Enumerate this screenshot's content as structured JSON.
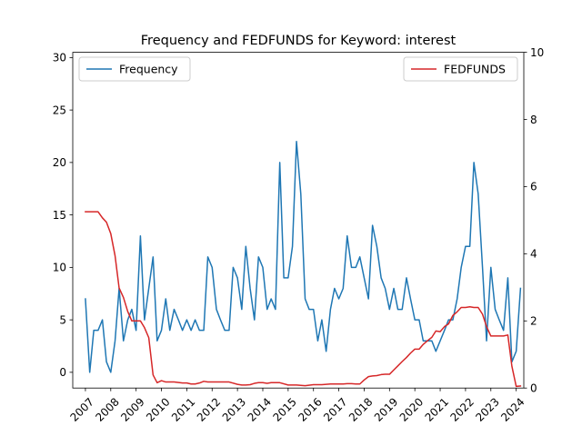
{
  "chart_data": {
    "type": "line",
    "title": "Frequency and FEDFUNDS for Keyword: interest",
    "xlabel": "",
    "x_axis": {
      "min": 2006.5,
      "max": 2024.3,
      "ticks": [
        2007,
        2008,
        2009,
        2010,
        2011,
        2012,
        2013,
        2014,
        2015,
        2016,
        2017,
        2018,
        2019,
        2020,
        2021,
        2022,
        2023,
        2024
      ],
      "tick_labels": [
        "2007",
        "2008",
        "2009",
        "2010",
        "2011",
        "2012",
        "2013",
        "2014",
        "2015",
        "2016",
        "2017",
        "2018",
        "2019",
        "2020",
        "2021",
        "2022",
        "2023",
        "2024"
      ]
    },
    "y_left": {
      "label": "",
      "min": -1.5,
      "max": 30.5,
      "ticks": [
        0,
        5,
        10,
        15,
        20,
        25,
        30
      ],
      "tick_labels": [
        "0",
        "5",
        "10",
        "15",
        "20",
        "25",
        "30"
      ]
    },
    "y_right": {
      "label": "",
      "min": 0,
      "max": 10,
      "ticks": [
        0,
        2,
        4,
        6,
        8,
        10
      ],
      "tick_labels": [
        "0",
        "2",
        "4",
        "6",
        "8",
        "10"
      ]
    },
    "grid": false,
    "series": [
      {
        "name": "Frequency",
        "axis": "left",
        "color": "#1f77b4",
        "points": [
          [
            2007.0,
            7
          ],
          [
            2007.17,
            0
          ],
          [
            2007.33,
            4
          ],
          [
            2007.5,
            4
          ],
          [
            2007.67,
            5
          ],
          [
            2007.83,
            1
          ],
          [
            2008.0,
            0
          ],
          [
            2008.17,
            3
          ],
          [
            2008.33,
            8
          ],
          [
            2008.5,
            3
          ],
          [
            2008.67,
            5
          ],
          [
            2008.83,
            6
          ],
          [
            2009.0,
            4
          ],
          [
            2009.17,
            13
          ],
          [
            2009.33,
            5
          ],
          [
            2009.5,
            8
          ],
          [
            2009.67,
            11
          ],
          [
            2009.83,
            3
          ],
          [
            2010.0,
            4
          ],
          [
            2010.17,
            7
          ],
          [
            2010.33,
            4
          ],
          [
            2010.5,
            6
          ],
          [
            2010.67,
            5
          ],
          [
            2010.83,
            4
          ],
          [
            2011.0,
            5
          ],
          [
            2011.17,
            4
          ],
          [
            2011.33,
            5
          ],
          [
            2011.5,
            4
          ],
          [
            2011.67,
            4
          ],
          [
            2011.83,
            11
          ],
          [
            2012.0,
            10
          ],
          [
            2012.17,
            6
          ],
          [
            2012.33,
            5
          ],
          [
            2012.5,
            4
          ],
          [
            2012.67,
            4
          ],
          [
            2012.83,
            10
          ],
          [
            2013.0,
            9
          ],
          [
            2013.17,
            6
          ],
          [
            2013.33,
            12
          ],
          [
            2013.5,
            8
          ],
          [
            2013.67,
            5
          ],
          [
            2013.83,
            11
          ],
          [
            2014.0,
            10
          ],
          [
            2014.17,
            6
          ],
          [
            2014.33,
            7
          ],
          [
            2014.5,
            6
          ],
          [
            2014.67,
            20
          ],
          [
            2014.83,
            9
          ],
          [
            2015.0,
            9
          ],
          [
            2015.17,
            12
          ],
          [
            2015.33,
            22
          ],
          [
            2015.5,
            17
          ],
          [
            2015.67,
            7
          ],
          [
            2015.83,
            6
          ],
          [
            2016.0,
            6
          ],
          [
            2016.17,
            3
          ],
          [
            2016.33,
            5
          ],
          [
            2016.5,
            2
          ],
          [
            2016.67,
            6
          ],
          [
            2016.83,
            8
          ],
          [
            2017.0,
            7
          ],
          [
            2017.17,
            8
          ],
          [
            2017.33,
            13
          ],
          [
            2017.5,
            10
          ],
          [
            2017.67,
            10
          ],
          [
            2017.83,
            11
          ],
          [
            2018.0,
            9
          ],
          [
            2018.17,
            7
          ],
          [
            2018.33,
            14
          ],
          [
            2018.5,
            12
          ],
          [
            2018.67,
            9
          ],
          [
            2018.83,
            8
          ],
          [
            2019.0,
            6
          ],
          [
            2019.17,
            8
          ],
          [
            2019.33,
            6
          ],
          [
            2019.5,
            6
          ],
          [
            2019.67,
            9
          ],
          [
            2019.83,
            7
          ],
          [
            2020.0,
            5
          ],
          [
            2020.17,
            5
          ],
          [
            2020.33,
            3
          ],
          [
            2020.5,
            3
          ],
          [
            2020.67,
            3
          ],
          [
            2020.83,
            2
          ],
          [
            2021.0,
            3
          ],
          [
            2021.17,
            4
          ],
          [
            2021.33,
            5
          ],
          [
            2021.5,
            5
          ],
          [
            2021.67,
            7
          ],
          [
            2021.83,
            10
          ],
          [
            2022.0,
            12
          ],
          [
            2022.17,
            12
          ],
          [
            2022.33,
            20
          ],
          [
            2022.5,
            17
          ],
          [
            2022.67,
            10
          ],
          [
            2022.83,
            3
          ],
          [
            2023.0,
            10
          ],
          [
            2023.17,
            6
          ],
          [
            2023.33,
            5
          ],
          [
            2023.5,
            4
          ],
          [
            2023.67,
            9
          ],
          [
            2023.83,
            1
          ],
          [
            2024.0,
            2
          ],
          [
            2024.17,
            8
          ]
        ]
      },
      {
        "name": "FEDFUNDS",
        "axis": "right",
        "color": "#d62728",
        "points": [
          [
            2007.0,
            5.25
          ],
          [
            2007.33,
            5.25
          ],
          [
            2007.5,
            5.25
          ],
          [
            2007.67,
            5.07
          ],
          [
            2007.83,
            4.94
          ],
          [
            2008.0,
            4.6
          ],
          [
            2008.17,
            3.94
          ],
          [
            2008.33,
            2.98
          ],
          [
            2008.5,
            2.7
          ],
          [
            2008.67,
            2.28
          ],
          [
            2008.83,
            2.0
          ],
          [
            2009.0,
            2.0
          ],
          [
            2009.17,
            2.0
          ],
          [
            2009.33,
            1.8
          ],
          [
            2009.5,
            1.5
          ],
          [
            2009.67,
            0.39
          ],
          [
            2009.83,
            0.16
          ],
          [
            2010.0,
            0.22
          ],
          [
            2010.17,
            0.18
          ],
          [
            2010.5,
            0.18
          ],
          [
            2010.83,
            0.15
          ],
          [
            2011.0,
            0.15
          ],
          [
            2011.17,
            0.12
          ],
          [
            2011.33,
            0.12
          ],
          [
            2011.5,
            0.15
          ],
          [
            2011.67,
            0.2
          ],
          [
            2011.83,
            0.18
          ],
          [
            2012.0,
            0.18
          ],
          [
            2012.33,
            0.18
          ],
          [
            2012.67,
            0.18
          ],
          [
            2013.0,
            0.11
          ],
          [
            2013.17,
            0.09
          ],
          [
            2013.33,
            0.09
          ],
          [
            2013.5,
            0.1
          ],
          [
            2013.67,
            0.14
          ],
          [
            2013.83,
            0.16
          ],
          [
            2014.0,
            0.16
          ],
          [
            2014.17,
            0.14
          ],
          [
            2014.33,
            0.16
          ],
          [
            2014.67,
            0.16
          ],
          [
            2015.0,
            0.09
          ],
          [
            2015.33,
            0.09
          ],
          [
            2015.67,
            0.07
          ],
          [
            2016.0,
            0.1
          ],
          [
            2016.33,
            0.1
          ],
          [
            2016.67,
            0.12
          ],
          [
            2017.0,
            0.12
          ],
          [
            2017.17,
            0.12
          ],
          [
            2017.33,
            0.13
          ],
          [
            2017.5,
            0.13
          ],
          [
            2017.67,
            0.12
          ],
          [
            2017.83,
            0.12
          ],
          [
            2018.0,
            0.24
          ],
          [
            2018.17,
            0.34
          ],
          [
            2018.33,
            0.36
          ],
          [
            2018.5,
            0.37
          ],
          [
            2018.67,
            0.4
          ],
          [
            2018.83,
            0.41
          ],
          [
            2019.0,
            0.41
          ],
          [
            2019.17,
            0.54
          ],
          [
            2019.33,
            0.66
          ],
          [
            2019.5,
            0.79
          ],
          [
            2019.67,
            0.91
          ],
          [
            2019.83,
            1.04
          ],
          [
            2020.0,
            1.16
          ],
          [
            2020.17,
            1.16
          ],
          [
            2020.33,
            1.3
          ],
          [
            2020.5,
            1.41
          ],
          [
            2020.67,
            1.51
          ],
          [
            2020.83,
            1.7
          ],
          [
            2021.0,
            1.68
          ],
          [
            2021.17,
            1.83
          ],
          [
            2021.33,
            1.91
          ],
          [
            2021.5,
            2.16
          ],
          [
            2021.67,
            2.27
          ],
          [
            2021.83,
            2.4
          ],
          [
            2022.0,
            2.4
          ],
          [
            2022.17,
            2.42
          ],
          [
            2022.33,
            2.4
          ],
          [
            2022.5,
            2.4
          ],
          [
            2022.67,
            2.2
          ],
          [
            2022.83,
            1.83
          ],
          [
            2023.0,
            1.55
          ],
          [
            2023.17,
            1.55
          ],
          [
            2023.5,
            1.55
          ],
          [
            2023.67,
            1.58
          ],
          [
            2023.83,
            0.65
          ],
          [
            2024.0,
            0.05
          ],
          [
            2024.17,
            0.06
          ]
        ]
      }
    ],
    "legends": [
      {
        "series": "Frequency",
        "placement": "upper-left"
      },
      {
        "series": "FEDFUNDS",
        "placement": "upper-right"
      }
    ]
  }
}
